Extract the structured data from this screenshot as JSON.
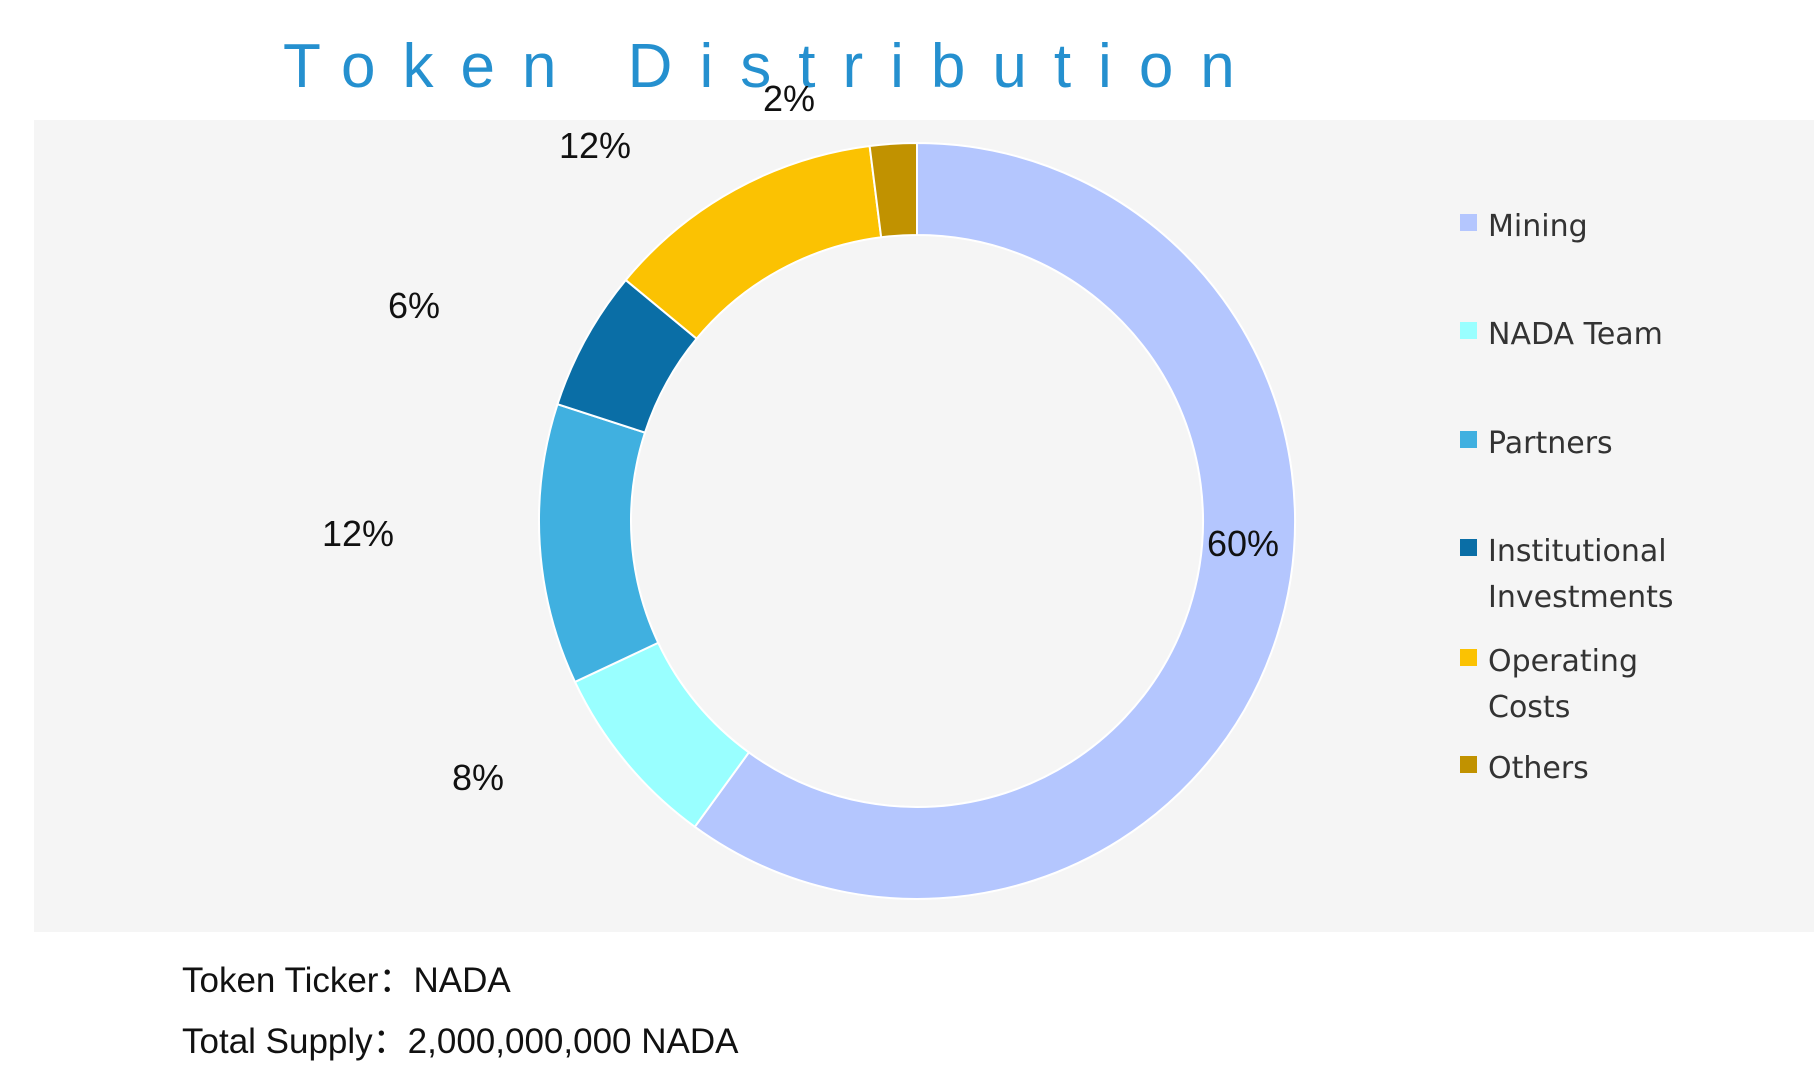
{
  "title": "Token Distribution",
  "chart_data": {
    "type": "pie",
    "donut": true,
    "title": "Token Distribution",
    "start_angle_deg": 0,
    "direction": "clockwise",
    "legend_position": "right",
    "slices": [
      {
        "name": "Mining",
        "value": 60,
        "label": "60%",
        "color": "#b4c6fe"
      },
      {
        "name": "NADA Team",
        "value": 8,
        "label": "8%",
        "color": "#99ffff"
      },
      {
        "name": "Partners",
        "value": 12,
        "label": "12%",
        "color": "#40b0e0"
      },
      {
        "name": "Institutional Investments",
        "value": 6,
        "label": "6%",
        "color": "#0a6ea6"
      },
      {
        "name": "Operating Costs",
        "value": 12,
        "label": "12%",
        "color": "#fbc202"
      },
      {
        "name": "Others",
        "value": 2,
        "label": "2%",
        "color": "#c19200"
      }
    ]
  },
  "legend": {
    "items": [
      {
        "label": "Mining",
        "color": "#b4c6fe"
      },
      {
        "label": "NADA Team",
        "color": "#99ffff"
      },
      {
        "label": "Partners",
        "color": "#40b0e0"
      },
      {
        "label": "Institutional Investments",
        "color": "#0a6ea6"
      },
      {
        "label": "Operating Costs",
        "color": "#fbc202"
      },
      {
        "label": "Others",
        "color": "#c19200"
      }
    ]
  },
  "info": {
    "ticker": "Token Ticker：NADA",
    "supply": "Total Supply：2,000,000,000 NADA"
  }
}
